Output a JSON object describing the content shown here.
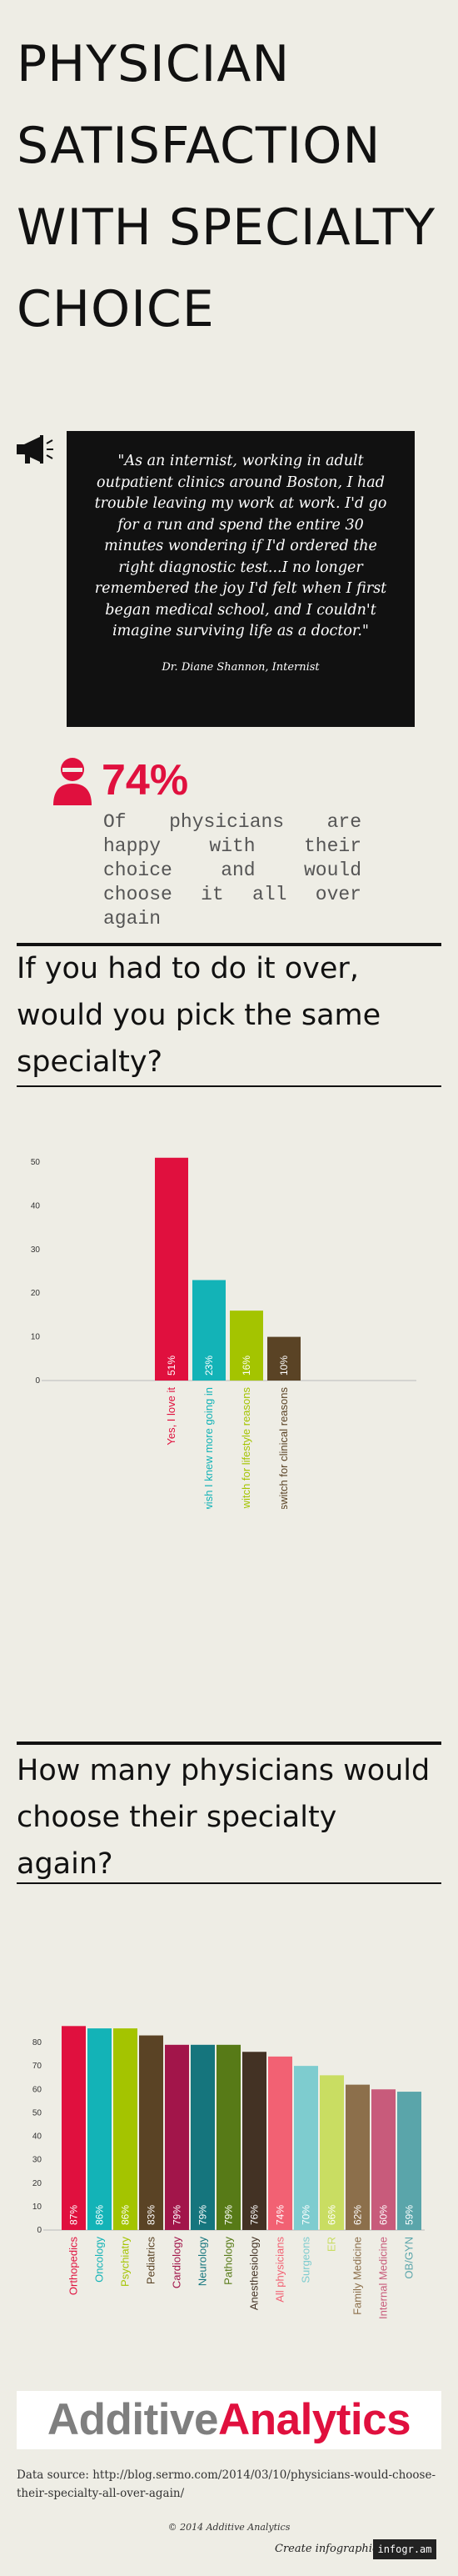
{
  "title": "PHYSICIAN SATISFACTION WITH SPECIALTY CHOICE",
  "quote": {
    "text": "\"As an internist, working in adult outpatient clinics around Boston, I had trouble leaving my work at work. I'd go for a run and spend the entire 30 minutes wondering if I'd ordered the right diagnostic test...I no longer remembered the joy I'd felt when I first began medical school, and I couldn't imagine surviving life as a doctor.\"",
    "author": "Dr. Diane Shannon, Internist",
    "icon": "megaphone-icon"
  },
  "stat": {
    "value": "74%",
    "description": "Of physicians are happy with their choice and would choose it all over again",
    "icon": "person-icon"
  },
  "section1": {
    "heading": "If you had to do it over, would you pick the same specialty?"
  },
  "section2": {
    "heading": "How many physicians would choose their specialty again?"
  },
  "chart_data": [
    {
      "type": "bar",
      "categories": [
        "Yes, I love it",
        "Yes, but I wish I knew more going in",
        "No, I would switch for lifestyle reasons",
        "No, I would switch for clinical reasons"
      ],
      "values": [
        51,
        23,
        16,
        10
      ],
      "value_labels": [
        "51%",
        "23%",
        "16%",
        "10%"
      ],
      "colors": [
        "#e0103e",
        "#13b3b7",
        "#a4c400",
        "#5a4325"
      ],
      "ylim": [
        0,
        50
      ],
      "yticks": [
        0,
        10,
        20,
        30,
        40,
        50
      ],
      "grid": false
    },
    {
      "type": "bar",
      "categories": [
        "Orthopedics",
        "Oncology",
        "Psychiatry",
        "Pediatrics",
        "Cardiology",
        "Neurology",
        "Pathology",
        "Anesthesiology",
        "All physicians",
        "Surgeons",
        "ER",
        "Family Medicine",
        "Internal Medicine",
        "OB/GYN"
      ],
      "values": [
        87,
        86,
        86,
        83,
        79,
        79,
        79,
        76,
        74,
        70,
        66,
        62,
        60,
        59
      ],
      "value_labels": [
        "87%",
        "86%",
        "86%",
        "83%",
        "79%",
        "79%",
        "79%",
        "76%",
        "74%",
        "70%",
        "66%",
        "62%",
        "60%",
        "59%"
      ],
      "colors": [
        "#e0103e",
        "#13b3b7",
        "#a4c400",
        "#5a4325",
        "#a2154a",
        "#15757d",
        "#577a17",
        "#433224",
        "#f26173",
        "#7ecccf",
        "#c9dd62",
        "#8c6f4b",
        "#c85b7b",
        "#5aa5aa"
      ],
      "ylim": [
        0,
        80
      ],
      "yticks": [
        0,
        10,
        20,
        30,
        40,
        50,
        60,
        70,
        80
      ],
      "grid": false
    }
  ],
  "footer": {
    "logo_part1": "Additive",
    "logo_part2": "Analytics",
    "source": "Data source: http://blog.sermo.com/2014/03/10/physicians-would-choose-their-specialty-all-over-again/",
    "copyright": "© 2014 Additive Analytics",
    "create": "Create infographics",
    "brand": "infogr.am"
  }
}
